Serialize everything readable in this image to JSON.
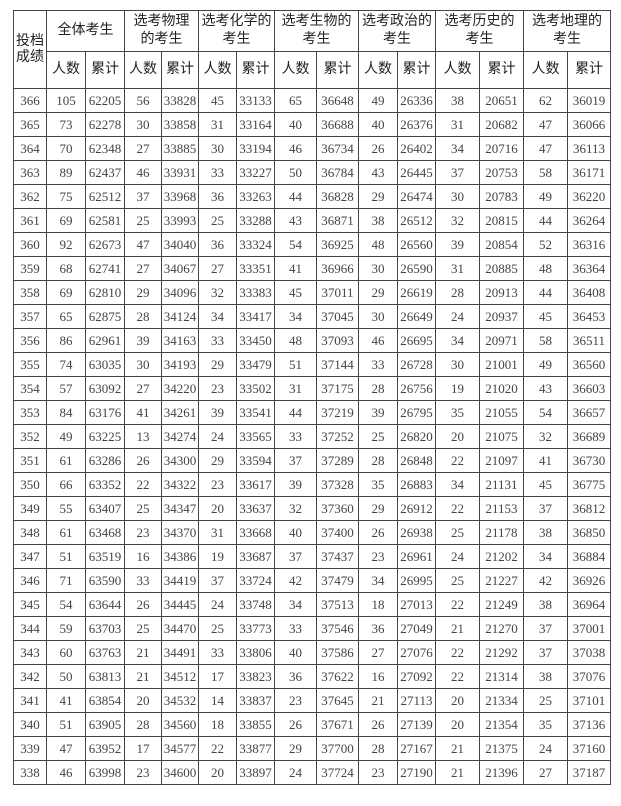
{
  "header": {
    "score_label": "投档成绩",
    "groups": [
      {
        "title": "全体考生"
      },
      {
        "title": "选考物理的考生"
      },
      {
        "title": "选考化学的考生"
      },
      {
        "title": "选考生物的考生"
      },
      {
        "title": "选考政治的考生"
      },
      {
        "title": "选考历史的 考生"
      },
      {
        "title": "选考地理的考生"
      }
    ],
    "count_label": "人数",
    "cumulative_label": "累计"
  },
  "rows": [
    [
      "366",
      "105",
      "62205",
      "56",
      "33828",
      "45",
      "33133",
      "65",
      "36648",
      "49",
      "26336",
      "38",
      "20651",
      "62",
      "36019"
    ],
    [
      "365",
      "73",
      "62278",
      "30",
      "33858",
      "31",
      "33164",
      "40",
      "36688",
      "40",
      "26376",
      "31",
      "20682",
      "47",
      "36066"
    ],
    [
      "364",
      "70",
      "62348",
      "27",
      "33885",
      "30",
      "33194",
      "46",
      "36734",
      "26",
      "26402",
      "34",
      "20716",
      "47",
      "36113"
    ],
    [
      "363",
      "89",
      "62437",
      "46",
      "33931",
      "33",
      "33227",
      "50",
      "36784",
      "43",
      "26445",
      "37",
      "20753",
      "58",
      "36171"
    ],
    [
      "362",
      "75",
      "62512",
      "37",
      "33968",
      "36",
      "33263",
      "44",
      "36828",
      "29",
      "26474",
      "30",
      "20783",
      "49",
      "36220"
    ],
    [
      "361",
      "69",
      "62581",
      "25",
      "33993",
      "25",
      "33288",
      "43",
      "36871",
      "38",
      "26512",
      "32",
      "20815",
      "44",
      "36264"
    ],
    [
      "360",
      "92",
      "62673",
      "47",
      "34040",
      "36",
      "33324",
      "54",
      "36925",
      "48",
      "26560",
      "39",
      "20854",
      "52",
      "36316"
    ],
    [
      "359",
      "68",
      "62741",
      "27",
      "34067",
      "27",
      "33351",
      "41",
      "36966",
      "30",
      "26590",
      "31",
      "20885",
      "48",
      "36364"
    ],
    [
      "358",
      "69",
      "62810",
      "29",
      "34096",
      "32",
      "33383",
      "45",
      "37011",
      "29",
      "26619",
      "28",
      "20913",
      "44",
      "36408"
    ],
    [
      "357",
      "65",
      "62875",
      "28",
      "34124",
      "34",
      "33417",
      "34",
      "37045",
      "30",
      "26649",
      "24",
      "20937",
      "45",
      "36453"
    ],
    [
      "356",
      "86",
      "62961",
      "39",
      "34163",
      "33",
      "33450",
      "48",
      "37093",
      "46",
      "26695",
      "34",
      "20971",
      "58",
      "36511"
    ],
    [
      "355",
      "74",
      "63035",
      "30",
      "34193",
      "29",
      "33479",
      "51",
      "37144",
      "33",
      "26728",
      "30",
      "21001",
      "49",
      "36560"
    ],
    [
      "354",
      "57",
      "63092",
      "27",
      "34220",
      "23",
      "33502",
      "31",
      "37175",
      "28",
      "26756",
      "19",
      "21020",
      "43",
      "36603"
    ],
    [
      "353",
      "84",
      "63176",
      "41",
      "34261",
      "39",
      "33541",
      "44",
      "37219",
      "39",
      "26795",
      "35",
      "21055",
      "54",
      "36657"
    ],
    [
      "352",
      "49",
      "63225",
      "13",
      "34274",
      "24",
      "33565",
      "33",
      "37252",
      "25",
      "26820",
      "20",
      "21075",
      "32",
      "36689"
    ],
    [
      "351",
      "61",
      "63286",
      "26",
      "34300",
      "29",
      "33594",
      "37",
      "37289",
      "28",
      "26848",
      "22",
      "21097",
      "41",
      "36730"
    ],
    [
      "350",
      "66",
      "63352",
      "22",
      "34322",
      "23",
      "33617",
      "39",
      "37328",
      "35",
      "26883",
      "34",
      "21131",
      "45",
      "36775"
    ],
    [
      "349",
      "55",
      "63407",
      "25",
      "34347",
      "20",
      "33637",
      "32",
      "37360",
      "29",
      "26912",
      "22",
      "21153",
      "37",
      "36812"
    ],
    [
      "348",
      "61",
      "63468",
      "23",
      "34370",
      "31",
      "33668",
      "40",
      "37400",
      "26",
      "26938",
      "25",
      "21178",
      "38",
      "36850"
    ],
    [
      "347",
      "51",
      "63519",
      "16",
      "34386",
      "19",
      "33687",
      "37",
      "37437",
      "23",
      "26961",
      "24",
      "21202",
      "34",
      "36884"
    ],
    [
      "346",
      "71",
      "63590",
      "33",
      "34419",
      "37",
      "33724",
      "42",
      "37479",
      "34",
      "26995",
      "25",
      "21227",
      "42",
      "36926"
    ],
    [
      "345",
      "54",
      "63644",
      "26",
      "34445",
      "24",
      "33748",
      "34",
      "37513",
      "18",
      "27013",
      "22",
      "21249",
      "38",
      "36964"
    ],
    [
      "344",
      "59",
      "63703",
      "25",
      "34470",
      "25",
      "33773",
      "33",
      "37546",
      "36",
      "27049",
      "21",
      "21270",
      "37",
      "37001"
    ],
    [
      "343",
      "60",
      "63763",
      "21",
      "34491",
      "33",
      "33806",
      "40",
      "37586",
      "27",
      "27076",
      "22",
      "21292",
      "37",
      "37038"
    ],
    [
      "342",
      "50",
      "63813",
      "21",
      "34512",
      "17",
      "33823",
      "36",
      "37622",
      "16",
      "27092",
      "22",
      "21314",
      "38",
      "37076"
    ],
    [
      "341",
      "41",
      "63854",
      "20",
      "34532",
      "14",
      "33837",
      "23",
      "37645",
      "21",
      "27113",
      "20",
      "21334",
      "25",
      "37101"
    ],
    [
      "340",
      "51",
      "63905",
      "28",
      "34560",
      "18",
      "33855",
      "26",
      "37671",
      "26",
      "27139",
      "20",
      "21354",
      "35",
      "37136"
    ],
    [
      "339",
      "47",
      "63952",
      "17",
      "34577",
      "22",
      "33877",
      "29",
      "37700",
      "28",
      "27167",
      "21",
      "21375",
      "24",
      "37160"
    ],
    [
      "338",
      "46",
      "63998",
      "23",
      "34600",
      "20",
      "33897",
      "24",
      "37724",
      "23",
      "27190",
      "21",
      "21396",
      "27",
      "37187"
    ]
  ]
}
